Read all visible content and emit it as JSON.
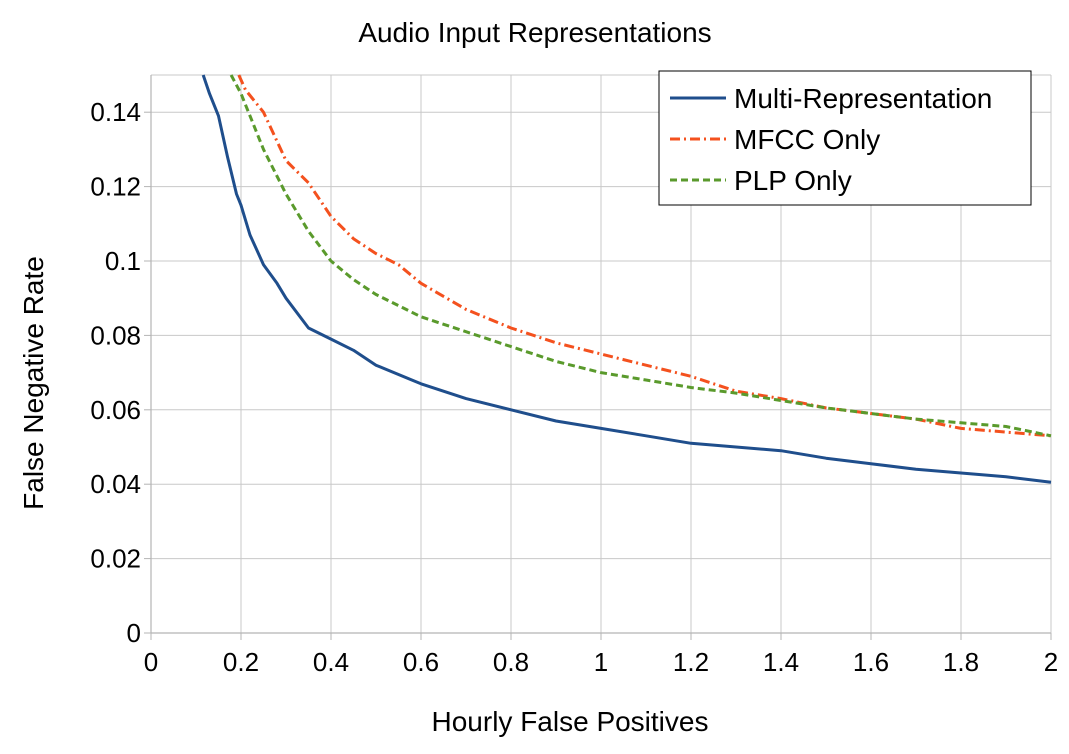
{
  "chart_data": {
    "type": "line",
    "title": "Audio Input Representations",
    "xlabel": "Hourly False Positives",
    "ylabel": "False Negative Rate",
    "xlim": [
      0,
      2
    ],
    "ylim": [
      0,
      0.15
    ],
    "xticks": [
      "0",
      "0.2",
      "0.4",
      "0.6",
      "0.8",
      "1",
      "1.2",
      "1.4",
      "1.6",
      "1.8",
      "2"
    ],
    "yticks": [
      "0",
      "0.02",
      "0.04",
      "0.06",
      "0.08",
      "0.1",
      "0.12",
      "0.14"
    ],
    "grid": true,
    "legend_position": "top-right",
    "series": [
      {
        "name": "Multi-Representation",
        "color": "#1f4e8c",
        "style": "solid",
        "x": [
          0.116,
          0.13,
          0.15,
          0.17,
          0.18,
          0.19,
          0.2,
          0.22,
          0.25,
          0.28,
          0.3,
          0.35,
          0.4,
          0.45,
          0.5,
          0.6,
          0.7,
          0.8,
          0.9,
          1.0,
          1.1,
          1.2,
          1.3,
          1.4,
          1.5,
          1.6,
          1.7,
          1.8,
          1.9,
          2.0
        ],
        "y": [
          0.15,
          0.145,
          0.139,
          0.128,
          0.123,
          0.118,
          0.115,
          0.107,
          0.099,
          0.094,
          0.09,
          0.082,
          0.079,
          0.076,
          0.072,
          0.067,
          0.063,
          0.06,
          0.057,
          0.055,
          0.053,
          0.051,
          0.05,
          0.049,
          0.047,
          0.0455,
          0.044,
          0.043,
          0.042,
          0.0405
        ]
      },
      {
        "name": "MFCC Only",
        "color": "#f4511e",
        "style": "dashdot",
        "x": [
          0.195,
          0.21,
          0.25,
          0.3,
          0.35,
          0.4,
          0.45,
          0.5,
          0.55,
          0.6,
          0.7,
          0.8,
          0.9,
          1.0,
          1.1,
          1.2,
          1.3,
          1.4,
          1.5,
          1.6,
          1.7,
          1.8,
          1.9,
          2.0
        ],
        "y": [
          0.15,
          0.146,
          0.14,
          0.127,
          0.121,
          0.112,
          0.106,
          0.102,
          0.099,
          0.094,
          0.087,
          0.082,
          0.078,
          0.075,
          0.072,
          0.069,
          0.065,
          0.063,
          0.0605,
          0.059,
          0.0575,
          0.055,
          0.054,
          0.053
        ]
      },
      {
        "name": "PLP Only",
        "color": "#5a9a2c",
        "style": "dashed",
        "x": [
          0.178,
          0.2,
          0.25,
          0.3,
          0.35,
          0.4,
          0.45,
          0.5,
          0.55,
          0.6,
          0.7,
          0.8,
          0.9,
          1.0,
          1.1,
          1.2,
          1.3,
          1.4,
          1.5,
          1.6,
          1.7,
          1.8,
          1.9,
          2.0
        ],
        "y": [
          0.15,
          0.145,
          0.13,
          0.118,
          0.108,
          0.1,
          0.095,
          0.091,
          0.088,
          0.085,
          0.081,
          0.077,
          0.073,
          0.07,
          0.068,
          0.066,
          0.0645,
          0.0625,
          0.0605,
          0.059,
          0.0575,
          0.0565,
          0.0555,
          0.053
        ]
      }
    ]
  }
}
